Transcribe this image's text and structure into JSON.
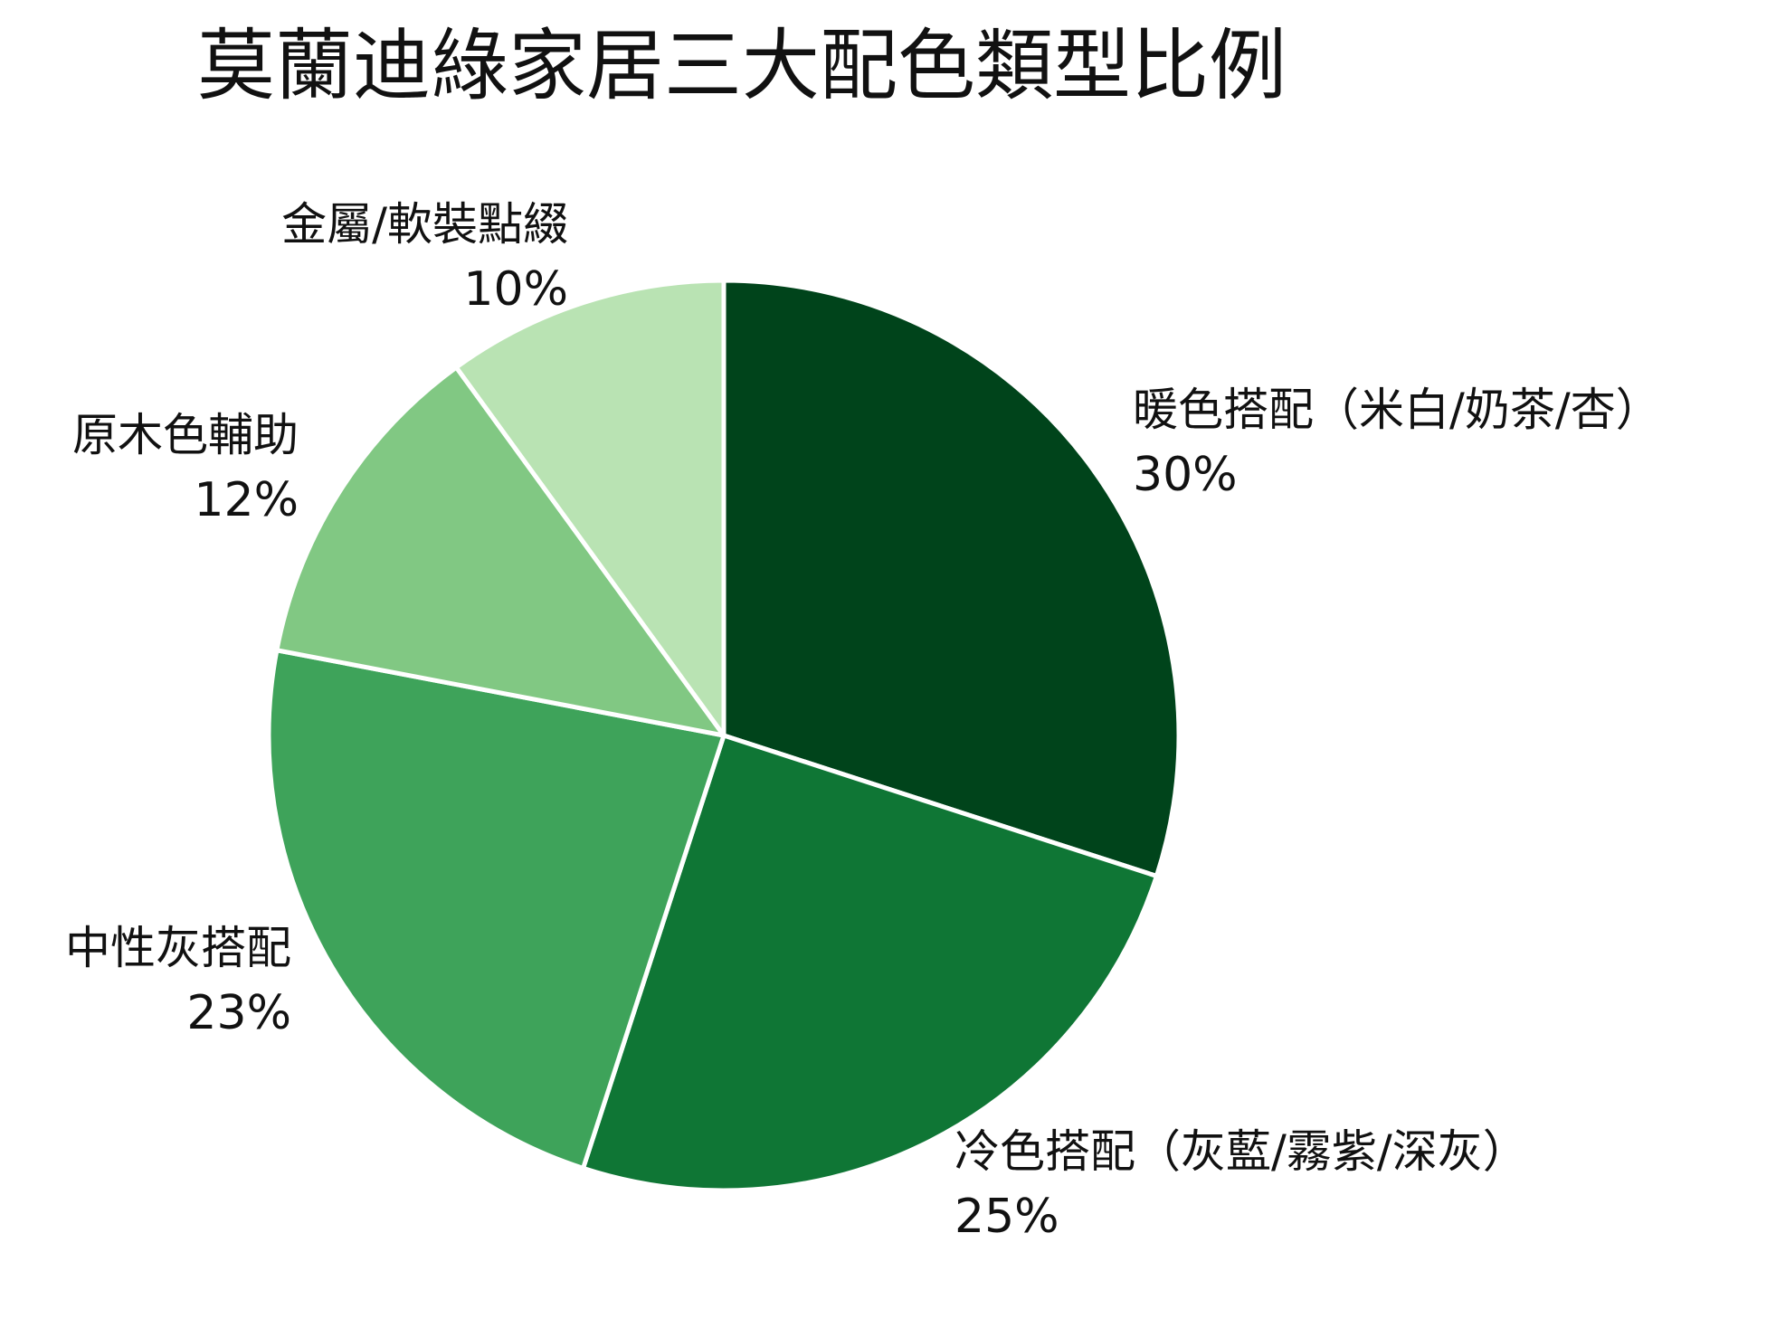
{
  "chart_data": {
    "type": "pie",
    "title": "莫蘭迪綠家居三大配色類型比例",
    "start_angle_deg": 90,
    "direction": "clockwise",
    "slices": [
      {
        "label": "暖色搭配（米白/奶茶/杏）",
        "value": 30,
        "value_label": "30%",
        "color": "#00441b"
      },
      {
        "label": "冷色搭配（灰藍/霧紫/深灰）",
        "value": 25,
        "value_label": "25%",
        "color": "#0f7635"
      },
      {
        "label": "中性灰搭配",
        "value": 23,
        "value_label": "23%",
        "color": "#3ea35a"
      },
      {
        "label": "原木色輔助",
        "value": 12,
        "value_label": "12%",
        "color": "#81c883"
      },
      {
        "label": "金屬/軟裝點綴",
        "value": 10,
        "value_label": "10%",
        "color": "#b9e3b3"
      }
    ]
  }
}
